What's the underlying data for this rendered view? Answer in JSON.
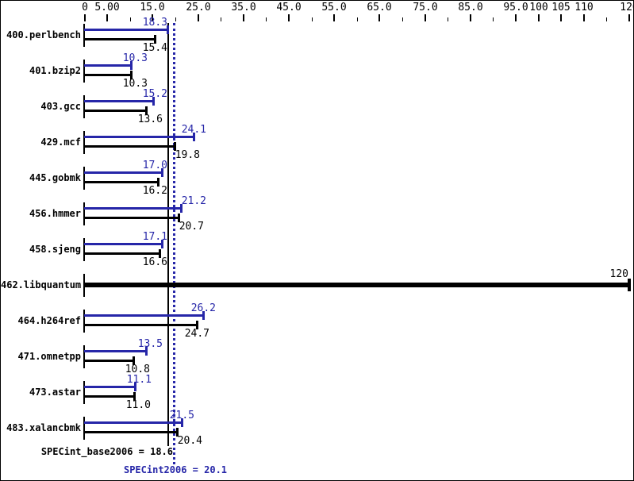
{
  "colors": {
    "peak_blue": "#2626a8",
    "base_black": "#000000",
    "background": "#ffffff",
    "border": "#000000"
  },
  "summary": {
    "base_label": "SPECint_base2006 = 18.6",
    "peak_label": "SPECint2006 = 20.1",
    "base_value": 18.6,
    "peak_value": 20.1
  },
  "chart_data": {
    "type": "bar",
    "orientation": "horizontal",
    "title": "",
    "xlabel": "",
    "ylabel": "",
    "xlim": [
      0,
      120
    ],
    "grid": false,
    "legend_position": "none",
    "axis": {
      "major_ticks": [
        {
          "value": 0,
          "label": "0"
        },
        {
          "value": 5,
          "label": "5.00"
        },
        {
          "value": 15,
          "label": "15.0"
        },
        {
          "value": 25,
          "label": "25.0"
        },
        {
          "value": 35,
          "label": "35.0"
        },
        {
          "value": 45,
          "label": "45.0"
        },
        {
          "value": 55,
          "label": "55.0"
        },
        {
          "value": 65,
          "label": "65.0"
        },
        {
          "value": 75,
          "label": "75.0"
        },
        {
          "value": 85,
          "label": "85.0"
        },
        {
          "value": 95,
          "label": "95.0"
        },
        {
          "value": 100,
          "label": "100"
        },
        {
          "value": 105,
          "label": "105"
        },
        {
          "value": 110,
          "label": "110"
        },
        {
          "value": 120,
          "label": "120"
        }
      ],
      "minor_ticks": [
        10,
        20,
        30,
        40,
        50,
        60,
        70,
        80,
        90,
        115
      ]
    },
    "categories": [
      "400.perlbench",
      "401.bzip2",
      "403.gcc",
      "429.mcf",
      "445.gobmk",
      "456.hmmer",
      "458.sjeng",
      "462.libquantum",
      "464.h264ref",
      "471.omnetpp",
      "473.astar",
      "483.xalancbmk"
    ],
    "series": [
      {
        "name": "SPECint2006 (peak)",
        "color": "#2626a8",
        "values": [
          18.3,
          10.3,
          15.2,
          24.1,
          17.0,
          21.2,
          17.1,
          null,
          26.2,
          13.5,
          11.1,
          21.5
        ]
      },
      {
        "name": "SPECint_base2006 (base)",
        "color": "#000000",
        "values": [
          15.4,
          10.3,
          13.6,
          19.8,
          16.2,
          20.7,
          16.6,
          null,
          24.7,
          10.8,
          11.0,
          20.4
        ]
      }
    ],
    "benchmarks": [
      {
        "name": "400.perlbench",
        "peak": 18.3,
        "peak_label": "18.3",
        "base": 15.4,
        "base_label": "15.4"
      },
      {
        "name": "401.bzip2",
        "peak": 10.3,
        "peak_label": "10.3",
        "base": 10.3,
        "base_label": "10.3"
      },
      {
        "name": "403.gcc",
        "peak": 15.2,
        "peak_label": "15.2",
        "base": 13.6,
        "base_label": "13.6"
      },
      {
        "name": "429.mcf",
        "peak": 24.1,
        "peak_label": "24.1",
        "base": 19.8,
        "base_label": "19.8"
      },
      {
        "name": "445.gobmk",
        "peak": 17.0,
        "peak_label": "17.0",
        "base": 16.2,
        "base_label": "16.2"
      },
      {
        "name": "456.hmmer",
        "peak": 21.2,
        "peak_label": "21.2",
        "base": 20.7,
        "base_label": "20.7"
      },
      {
        "name": "458.sjeng",
        "peak": 17.1,
        "peak_label": "17.1",
        "base": 16.6,
        "base_label": "16.6"
      },
      {
        "name": "462.libquantum",
        "single": true,
        "value": 120,
        "value_label": "120"
      },
      {
        "name": "464.h264ref",
        "peak": 26.2,
        "peak_label": "26.2",
        "base": 24.7,
        "base_label": "24.7"
      },
      {
        "name": "471.omnetpp",
        "peak": 13.5,
        "peak_label": "13.5",
        "base": 10.8,
        "base_label": "10.8"
      },
      {
        "name": "473.astar",
        "peak": 11.1,
        "peak_label": "11.1",
        "base": 11.0,
        "base_label": "11.0"
      },
      {
        "name": "483.xalancbmk",
        "peak": 21.5,
        "peak_label": "21.5",
        "base": 20.4,
        "base_label": "20.4"
      }
    ]
  }
}
